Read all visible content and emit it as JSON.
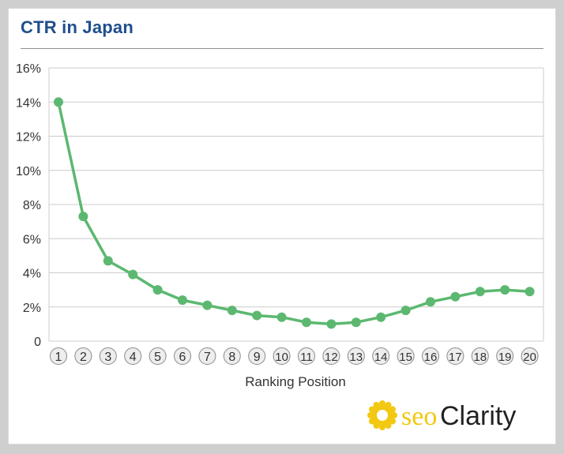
{
  "chart_data": {
    "type": "line",
    "title": "CTR in Japan",
    "xlabel": "Ranking Position",
    "ylabel": "",
    "x": [
      1,
      2,
      3,
      4,
      5,
      6,
      7,
      8,
      9,
      10,
      11,
      12,
      13,
      14,
      15,
      16,
      17,
      18,
      19,
      20
    ],
    "series": [
      {
        "values": [
          14.0,
          7.3,
          4.7,
          3.9,
          3.0,
          2.4,
          2.1,
          1.8,
          1.5,
          1.4,
          1.1,
          1.0,
          1.1,
          1.4,
          1.8,
          2.3,
          2.6,
          2.9,
          3.0,
          2.9
        ]
      }
    ],
    "ylim": [
      0,
      16
    ],
    "yticks": [
      {
        "value": 0,
        "label": "0"
      },
      {
        "value": 2,
        "label": "2%"
      },
      {
        "value": 4,
        "label": "4%"
      },
      {
        "value": 6,
        "label": "6%"
      },
      {
        "value": 8,
        "label": "8%"
      },
      {
        "value": 10,
        "label": "10%"
      },
      {
        "value": 12,
        "label": "12%"
      },
      {
        "value": 14,
        "label": "14%"
      },
      {
        "value": 16,
        "label": "16%"
      }
    ],
    "grid": true
  },
  "colors": {
    "line": "#5cb870",
    "grid": "#cccccc",
    "title": "#1f4e8c",
    "axis_text": "#333333",
    "logo_gold": "#f2c811"
  },
  "brand": {
    "logo_prefix": "seo",
    "logo_suffix": "Clarity",
    "logo_icon": "sun-burst-icon"
  }
}
